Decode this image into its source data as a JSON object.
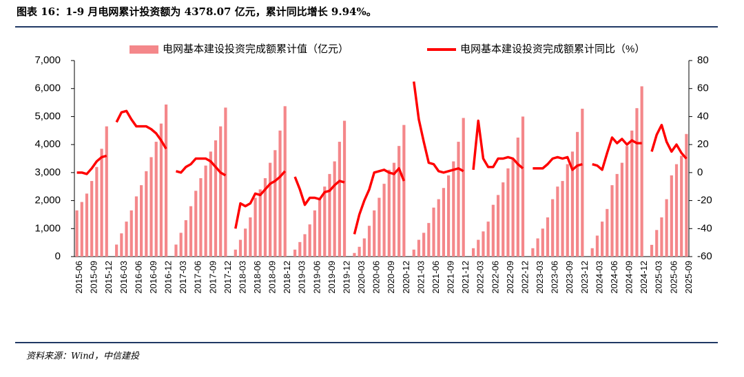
{
  "chart_data": {
    "type": "bar-line",
    "title": "图表 16：1-9 月电网累计投资额为 4378.07 亿元，累计同比增长 9.94%。",
    "source": "资料来源：Wind，中信建投",
    "categories": [
      "2015-06",
      null,
      null,
      "2015-09",
      null,
      null,
      "2015-12",
      null,
      null,
      "2016-03",
      null,
      null,
      "2016-06",
      null,
      null,
      "2016-09",
      null,
      null,
      "2016-12",
      null,
      null,
      "2017-03",
      null,
      null,
      "2017-06",
      null,
      null,
      "2017-09",
      null,
      null,
      "2017-12",
      null,
      null,
      "2018-03",
      null,
      null,
      "2018-06",
      null,
      null,
      "2018-09",
      null,
      null,
      "2018-12",
      null,
      null,
      "2019-03",
      null,
      null,
      "2019-06",
      null,
      null,
      "2019-09",
      null,
      null,
      "2019-12",
      null,
      null,
      "2020-03",
      null,
      null,
      "2020-06",
      null,
      null,
      "2020-09",
      null,
      null,
      "2020-12",
      null,
      null,
      "2021-03",
      null,
      null,
      "2021-06",
      null,
      null,
      "2021-09",
      null,
      null,
      "2021-12",
      null,
      null,
      "2022-03",
      null,
      null,
      "2022-06",
      null,
      null,
      "2022-09",
      null,
      null,
      "2022-12",
      null,
      null,
      "2023-03",
      null,
      null,
      "2023-06",
      null,
      null,
      "2023-09",
      null,
      null,
      "2023-12",
      null,
      null,
      "2024-03",
      null,
      null,
      "2024-06",
      null,
      null,
      "2024-09",
      null,
      null,
      "2024-12",
      null,
      null,
      "2025-03",
      null,
      null,
      "2025-06",
      null,
      null,
      "2025-09"
    ],
    "series": [
      {
        "name": "电网基本建设投资完成额累计值（亿元）",
        "type": "bar",
        "color": "#f4878a",
        "values": [
          1650,
          1950,
          2250,
          2700,
          3200,
          3850,
          4650,
          null,
          430,
          830,
          1250,
          1650,
          2150,
          2550,
          3050,
          3550,
          4100,
          4750,
          5430,
          null,
          430,
          850,
          1300,
          1800,
          2350,
          2800,
          3250,
          3750,
          4150,
          4650,
          5320,
          null,
          250,
          600,
          1000,
          1400,
          2100,
          2400,
          2800,
          3350,
          3800,
          4500,
          5370,
          null,
          250,
          520,
          800,
          1150,
          1650,
          2050,
          2500,
          2950,
          3400,
          4100,
          4850,
          null,
          130,
          350,
          650,
          1100,
          1650,
          2100,
          2600,
          3100,
          3350,
          3950,
          4700,
          null,
          250,
          600,
          850,
          1200,
          1750,
          2050,
          2450,
          2900,
          3400,
          4100,
          4950,
          null,
          300,
          600,
          900,
          1250,
          1850,
          2200,
          2650,
          3150,
          3500,
          4250,
          5000,
          null,
          300,
          650,
          1000,
          1400,
          2050,
          2500,
          2700,
          3300,
          3750,
          4450,
          5280,
          null,
          300,
          750,
          1250,
          1700,
          2550,
          2950,
          3350,
          3950,
          4500,
          5300,
          6080,
          null,
          420,
          950,
          1400,
          2050,
          2900,
          3300,
          3600,
          4378.07
        ]
      },
      {
        "name": "电网基本建设投资完成额累计同比（%）",
        "type": "line",
        "axis": "y2",
        "color": "#ff0000",
        "values": [
          0,
          0,
          -1,
          3,
          8,
          11,
          12,
          null,
          36,
          43,
          44,
          38,
          33,
          33,
          33,
          31,
          28,
          23,
          17,
          null,
          1,
          0,
          4,
          6,
          10,
          10,
          10,
          8,
          4,
          0,
          -2,
          null,
          -40,
          -22,
          -24,
          -22,
          -15,
          -16,
          -12,
          -8,
          -6,
          -3,
          1,
          null,
          -3,
          -12,
          -23,
          -18,
          -18,
          -19,
          -14,
          -13,
          -9,
          -6,
          -7,
          null,
          -44,
          -30,
          -20,
          -12,
          0,
          1,
          2,
          0,
          -1,
          3,
          -6,
          null,
          65,
          38,
          22,
          7,
          6,
          1,
          0,
          1,
          2,
          3,
          1,
          null,
          2,
          37,
          10,
          4,
          4,
          10,
          10,
          11,
          10,
          6,
          3,
          null,
          3,
          3,
          3,
          6,
          10,
          11,
          10,
          11,
          2,
          5,
          6,
          null,
          6,
          5,
          2,
          14,
          25,
          21,
          24,
          20,
          23,
          21,
          21,
          null,
          15,
          27,
          34,
          22,
          15,
          20,
          14,
          9.94
        ]
      }
    ],
    "ylim": [
      0,
      7000
    ],
    "yticks": [
      0,
      {
        "value": 1000,
        "label": "1,000"
      },
      {
        "value": 2000,
        "label": "2,000"
      },
      {
        "value": 3000,
        "label": "3,000"
      },
      {
        "value": 4000,
        "label": "4,000"
      },
      {
        "value": 5000,
        "label": "5,000"
      },
      {
        "value": 6000,
        "label": "6,000"
      },
      {
        "value": 7000,
        "label": "7,000"
      }
    ],
    "y2lim": [
      -60,
      80
    ],
    "y2ticks": [
      -60,
      -40,
      -20,
      0,
      20,
      40,
      60,
      80
    ]
  }
}
